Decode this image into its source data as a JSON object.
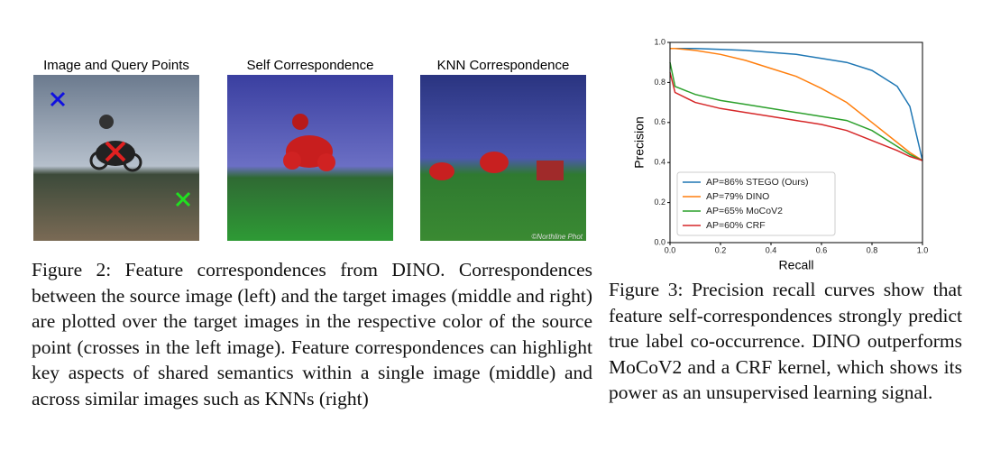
{
  "figure2": {
    "panels": [
      "Image and Query Points",
      "Self Correspondence",
      "KNN Correspondence"
    ],
    "watermark": "©Northline Phot",
    "caption": "Figure 2: Feature correspondences from DINO. Correspondences between the source image (left) and the target images (middle and right) are plotted over the target images in the respective color of the source point (crosses in the left image). Feature correspondences can highlight key aspects of shared semantics within a single image (middle) and across similar images such as KNNs (right)"
  },
  "chart_data": {
    "type": "line",
    "xlabel": "Recall",
    "ylabel": "Precision",
    "x": [
      0,
      0.02,
      0.1,
      0.2,
      0.3,
      0.4,
      0.5,
      0.6,
      0.7,
      0.8,
      0.9,
      0.95,
      1.0
    ],
    "series": [
      {
        "name": "AP=86% STEGO (Ours)",
        "color": "#1f77b4",
        "values": [
          0.97,
          0.97,
          0.97,
          0.965,
          0.96,
          0.95,
          0.94,
          0.92,
          0.9,
          0.86,
          0.78,
          0.68,
          0.41
        ]
      },
      {
        "name": "AP=79% DINO",
        "color": "#ff7f0e",
        "values": [
          0.97,
          0.97,
          0.96,
          0.94,
          0.91,
          0.87,
          0.83,
          0.77,
          0.7,
          0.6,
          0.5,
          0.45,
          0.41
        ]
      },
      {
        "name": "AP=65% MoCoV2",
        "color": "#2ca02c",
        "values": [
          0.9,
          0.78,
          0.74,
          0.71,
          0.69,
          0.67,
          0.65,
          0.63,
          0.61,
          0.56,
          0.48,
          0.44,
          0.41
        ]
      },
      {
        "name": "AP=60% CRF",
        "color": "#d62728",
        "values": [
          0.85,
          0.75,
          0.7,
          0.67,
          0.65,
          0.63,
          0.61,
          0.59,
          0.56,
          0.51,
          0.46,
          0.43,
          0.41
        ]
      }
    ],
    "xlim": [
      0,
      1
    ],
    "ylim": [
      0,
      1
    ],
    "xticks": [
      {
        "value": 0,
        "label": "0.0"
      },
      0.2,
      0.4,
      0.6,
      0.8,
      {
        "value": 1,
        "label": "1.0"
      }
    ],
    "yticks": [
      {
        "value": 0,
        "label": "0.0"
      },
      0.2,
      0.4,
      0.6,
      0.8,
      {
        "value": 1,
        "label": "1.0"
      }
    ],
    "legend": "lower left"
  },
  "figure3": {
    "caption": "Figure 3: Precision recall curves show that feature self-correspondences strongly predict true label co-occurrence. DINO outperforms MoCoV2 and a CRF kernel, which shows its power as an unsupervised learning signal."
  }
}
